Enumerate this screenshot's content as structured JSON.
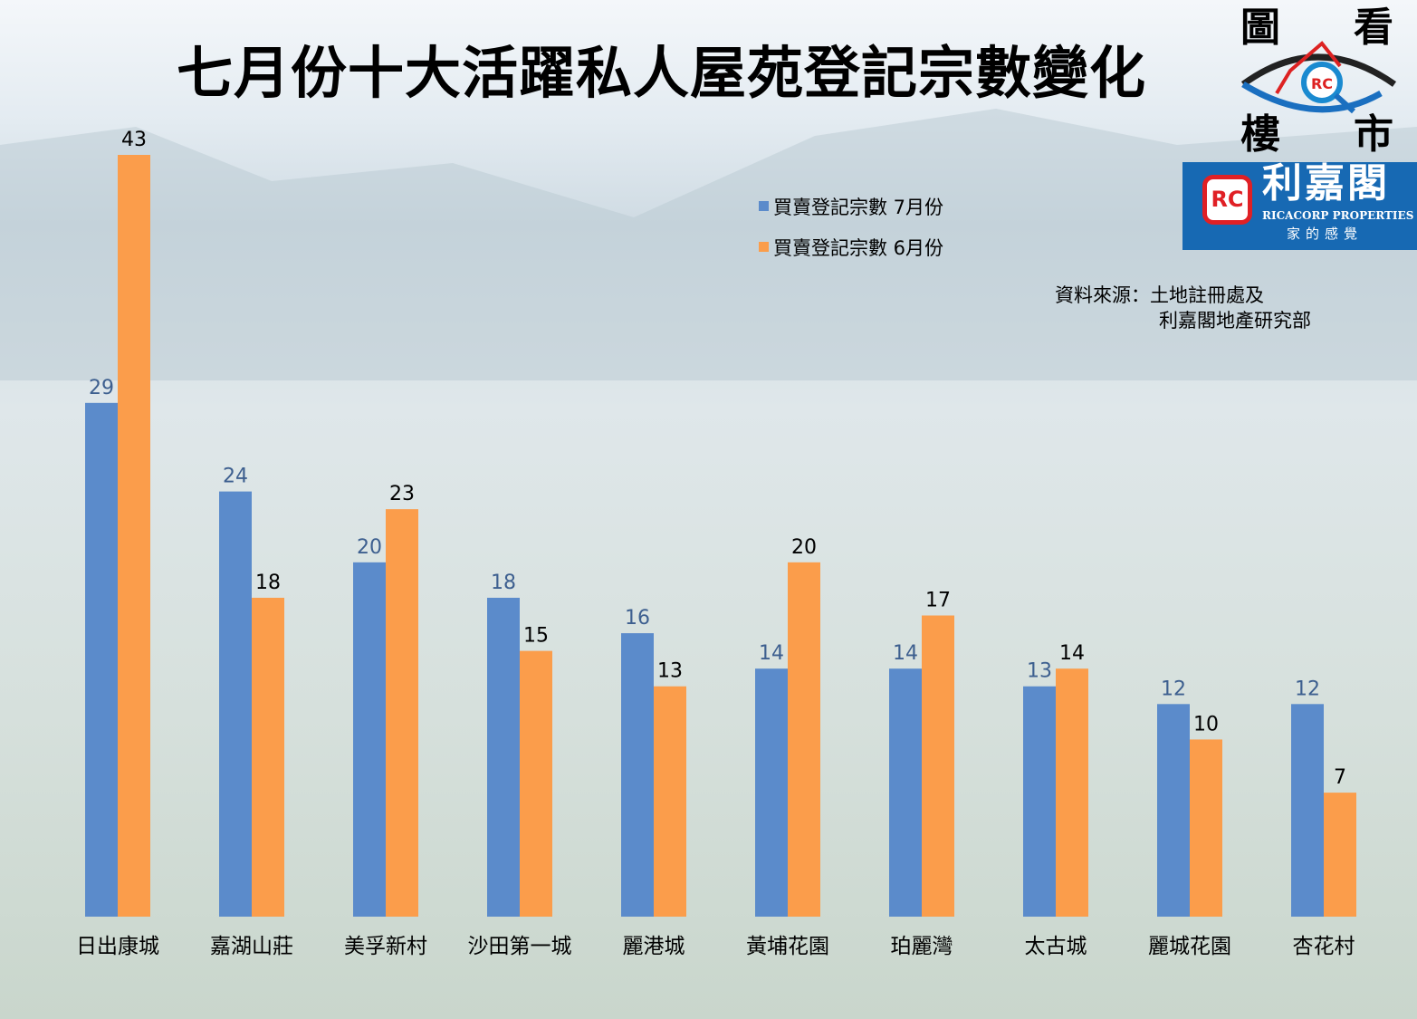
{
  "chart_data": {
    "type": "bar",
    "title": "七月份十大活躍私人屋苑登記宗數變化",
    "categories": [
      "日出康城",
      "嘉湖山莊",
      "美孚新村",
      "沙田第一城",
      "麗港城",
      "黃埔花園",
      "珀麗灣",
      "太古城",
      "麗城花園",
      "杏花村"
    ],
    "series": [
      {
        "name": "買賣登記宗數 7月份",
        "color": "#5b8bcb",
        "label_color": "#3d5f8f",
        "values": [
          29,
          24,
          20,
          18,
          16,
          14,
          14,
          13,
          12,
          12
        ]
      },
      {
        "name": "買賣登記宗數 6月份",
        "color": "#fb9d4b",
        "label_color": "#000000",
        "values": [
          43,
          18,
          23,
          15,
          13,
          20,
          17,
          14,
          10,
          7
        ]
      }
    ],
    "xlabel": "",
    "ylabel": "",
    "ylim": [
      0,
      43
    ],
    "grid": false,
    "legend_position": "top-right"
  },
  "source": {
    "label": "資料來源：土地註冊處及",
    "line2": "利嘉閣地產研究部"
  },
  "logo": {
    "chars": [
      "圖",
      "看",
      "樓",
      "市"
    ],
    "brand": "利嘉閣",
    "brand_en": "RICACORP PROPERTIES",
    "slogan": "家的感覺",
    "mark": "RC"
  }
}
